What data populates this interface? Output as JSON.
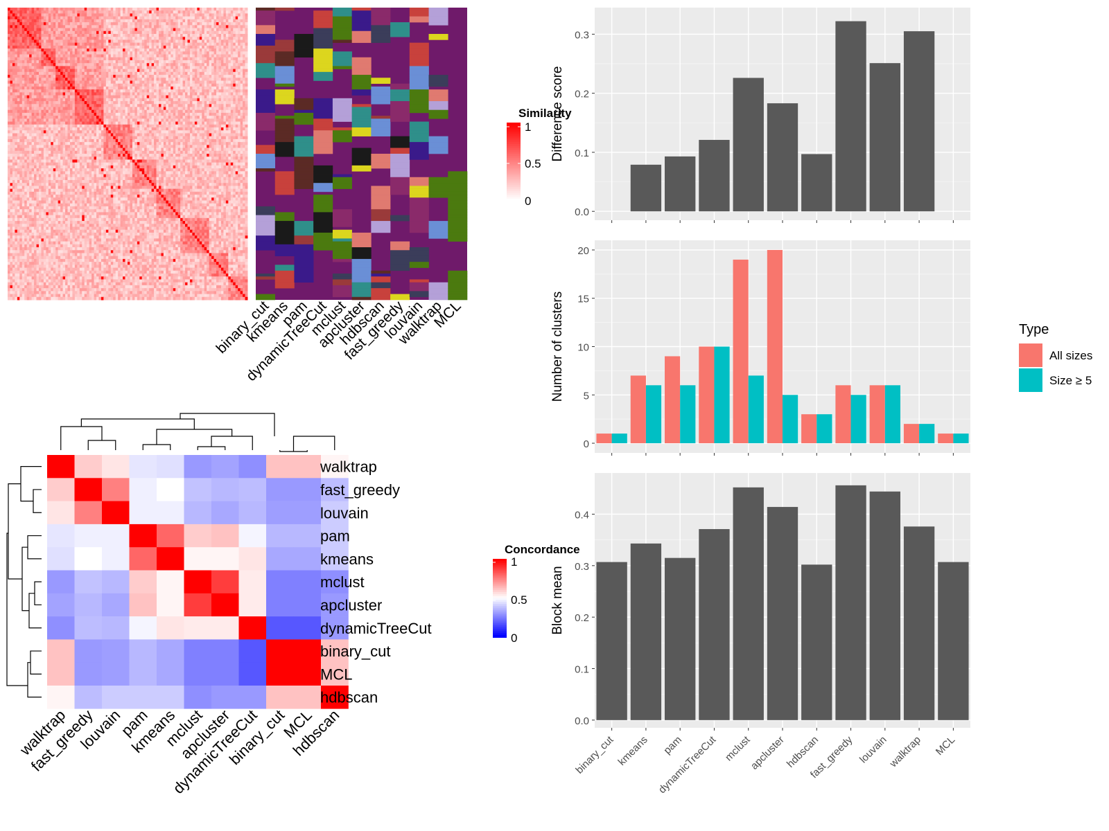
{
  "chart_data": [
    {
      "type": "heatmap",
      "panel": "similarity-heatmap",
      "legend_title": "Similarity",
      "legend_ticks": [
        "1",
        "0.5",
        "0"
      ],
      "colors": {
        "low": "#ffffff",
        "high": "#ff0000"
      }
    },
    {
      "type": "heatmap",
      "panel": "cluster-assignment-annotation",
      "columns": [
        "binary_cut",
        "kmeans",
        "pam",
        "dynamicTreeCut",
        "mclust",
        "apcluster",
        "hdbscan",
        "fast_greedy",
        "louvain",
        "walktrap",
        "MCL"
      ],
      "background_color": "#6f1a6a"
    },
    {
      "type": "heatmap",
      "panel": "concordance-heatmap",
      "legend_title": "Concordance",
      "legend_ticks": [
        "1",
        "0.5",
        "0"
      ],
      "colors": {
        "low": "#0000ff",
        "mid": "#ffffff",
        "high": "#ff0000"
      },
      "rows": [
        "walktrap",
        "fast_greedy",
        "louvain",
        "pam",
        "kmeans",
        "mclust",
        "apcluster",
        "dynamicTreeCut",
        "binary_cut",
        "MCL",
        "hdbscan"
      ],
      "columns": [
        "walktrap",
        "fast_greedy",
        "louvain",
        "pam",
        "kmeans",
        "mclust",
        "apcluster",
        "dynamicTreeCut",
        "binary_cut",
        "MCL",
        "hdbscan"
      ],
      "values": [
        [
          1.0,
          0.6,
          0.55,
          0.45,
          0.44,
          0.3,
          0.32,
          0.28,
          0.62,
          0.62,
          0.52
        ],
        [
          0.6,
          1.0,
          0.75,
          0.47,
          0.5,
          0.38,
          0.36,
          0.37,
          0.3,
          0.3,
          0.37
        ],
        [
          0.55,
          0.75,
          1.0,
          0.47,
          0.47,
          0.36,
          0.33,
          0.36,
          0.31,
          0.31,
          0.4
        ],
        [
          0.45,
          0.47,
          0.47,
          1.0,
          0.8,
          0.6,
          0.62,
          0.48,
          0.36,
          0.36,
          0.4
        ],
        [
          0.44,
          0.5,
          0.47,
          0.8,
          1.0,
          0.52,
          0.52,
          0.55,
          0.33,
          0.33,
          0.4
        ],
        [
          0.3,
          0.38,
          0.36,
          0.6,
          0.52,
          1.0,
          0.88,
          0.54,
          0.25,
          0.25,
          0.28
        ],
        [
          0.32,
          0.36,
          0.33,
          0.62,
          0.52,
          0.88,
          1.0,
          0.54,
          0.25,
          0.25,
          0.3
        ],
        [
          0.28,
          0.37,
          0.36,
          0.48,
          0.55,
          0.54,
          0.54,
          1.0,
          0.17,
          0.17,
          0.3
        ],
        [
          0.62,
          0.3,
          0.31,
          0.36,
          0.33,
          0.25,
          0.25,
          0.17,
          1.0,
          1.0,
          0.62
        ],
        [
          0.62,
          0.3,
          0.31,
          0.36,
          0.33,
          0.25,
          0.25,
          0.17,
          1.0,
          1.0,
          0.62
        ],
        [
          0.52,
          0.37,
          0.4,
          0.4,
          0.4,
          0.28,
          0.3,
          0.3,
          0.62,
          0.62,
          1.0
        ]
      ]
    },
    {
      "type": "bar",
      "panel": "difference-score",
      "categories": [
        "binary_cut",
        "kmeans",
        "pam",
        "dynamicTreeCut",
        "mclust",
        "apcluster",
        "hdbscan",
        "fast_greedy",
        "louvain",
        "walktrap",
        "MCL"
      ],
      "values": [
        0,
        0.079,
        0.093,
        0.121,
        0.226,
        0.183,
        0.097,
        0.322,
        0.251,
        0.305,
        0
      ],
      "ylabel": "Difference score",
      "ylim": [
        -0.015,
        0.345
      ],
      "yticks": [
        "0.0",
        "0.1",
        "0.2",
        "0.3"
      ],
      "bar_color": "#595959",
      "panel_background": "#ebebeb"
    },
    {
      "type": "bar",
      "panel": "number-of-clusters",
      "categories": [
        "binary_cut",
        "kmeans",
        "pam",
        "dynamicTreeCut",
        "mclust",
        "apcluster",
        "hdbscan",
        "fast_greedy",
        "louvain",
        "walktrap",
        "MCL"
      ],
      "series": [
        {
          "name": "All sizes",
          "color": "#f8766d",
          "values": [
            1,
            7,
            9,
            10,
            19,
            20,
            3,
            6,
            6,
            2,
            1
          ]
        },
        {
          "name": "Size ≥ 5",
          "color": "#00bfc4",
          "values": [
            1,
            6,
            6,
            10,
            7,
            5,
            3,
            5,
            6,
            2,
            1
          ]
        }
      ],
      "ylabel": "Number of clusters",
      "ylim": [
        -1,
        21
      ],
      "yticks": [
        "0",
        "5",
        "10",
        "15",
        "20"
      ],
      "legend_title": "Type",
      "legend_position": "right"
    },
    {
      "type": "bar",
      "panel": "block-mean",
      "categories": [
        "binary_cut",
        "kmeans",
        "pam",
        "dynamicTreeCut",
        "mclust",
        "apcluster",
        "hdbscan",
        "fast_greedy",
        "louvain",
        "walktrap",
        "MCL"
      ],
      "values": [
        0.307,
        0.343,
        0.315,
        0.371,
        0.452,
        0.414,
        0.302,
        0.456,
        0.444,
        0.376,
        0.307
      ],
      "ylabel": "Block mean",
      "ylim": [
        -0.015,
        0.48
      ],
      "yticks": [
        "0.0",
        "0.1",
        "0.2",
        "0.3",
        "0.4"
      ],
      "bar_color": "#595959",
      "panel_background": "#ebebeb"
    }
  ]
}
